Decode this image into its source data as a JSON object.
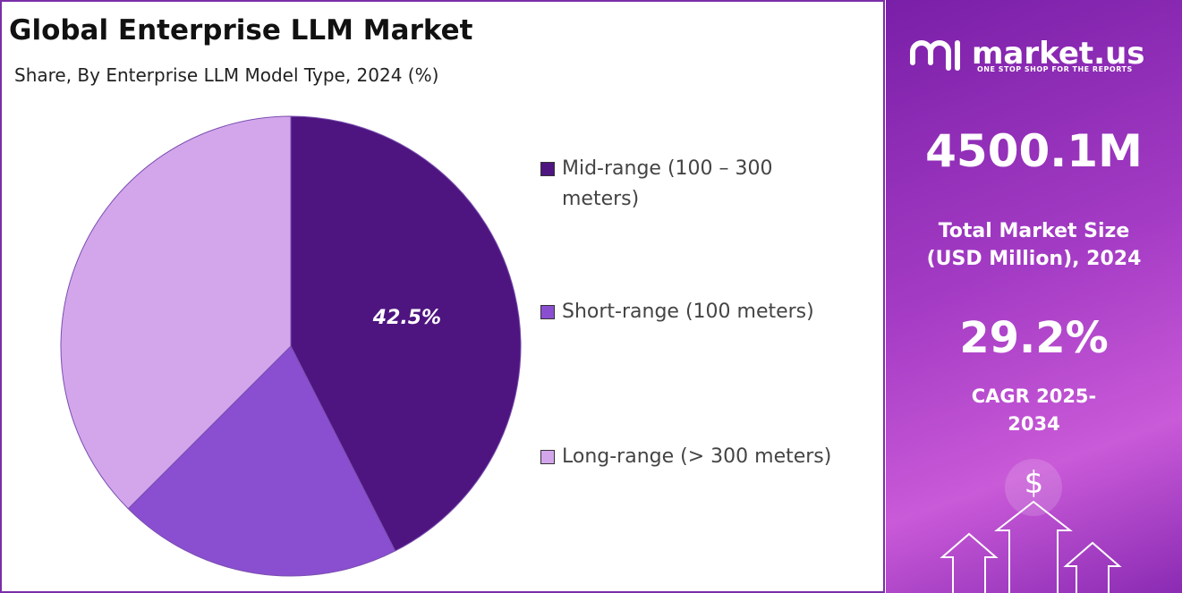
{
  "chart_data": {
    "type": "pie",
    "title": "Global Enterprise LLM Market",
    "subtitle": "Share, By Enterprise LLM Model Type, 2024 (%)",
    "categories": [
      "Mid-range (100 – 300 meters)",
      "Short-range (100 meters)",
      "Long-range (> 300 meters)"
    ],
    "values": [
      42.5,
      20,
      37.5
    ],
    "value_labels": [
      "42.5%",
      null,
      null
    ],
    "colors": [
      "#4e1580",
      "#8a4fd0",
      "#d3a6ec"
    ],
    "legend": "right"
  },
  "side_panel": {
    "brand": "market.us",
    "tagline": "ONE STOP SHOP FOR THE REPORTS",
    "market_size": "4500.1M",
    "market_size_label": "Total Market Size (USD Million), 2024",
    "cagr": "29.2%",
    "cagr_label": "CAGR 2025-2034",
    "icon_symbol": "$"
  }
}
